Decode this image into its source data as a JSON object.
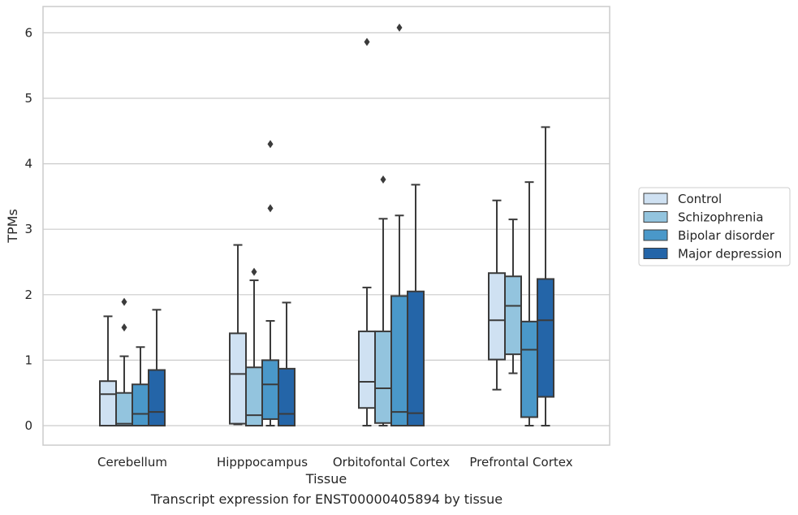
{
  "caption": "Transcript expression for ENST00000405894 by tissue",
  "chart_data": {
    "type": "box",
    "xlabel": "Tissue",
    "ylabel": "TPMs",
    "ylim": [
      -0.3,
      6.4
    ],
    "yticks": [
      0,
      1,
      2,
      3,
      4,
      5,
      6
    ],
    "grid": "horizontal",
    "legend_position": "right",
    "categories": [
      "Cerebellum",
      "Hipppocampus",
      "Orbitofontal Cortex",
      "Prefrontal Cortex"
    ],
    "series": [
      {
        "name": "Control",
        "color": "#cfe1f2",
        "boxes": [
          {
            "whislo": 0.0,
            "q1": 0.0,
            "med": 0.48,
            "q3": 0.68,
            "whishi": 1.67,
            "fliers": []
          },
          {
            "whislo": 0.02,
            "q1": 0.03,
            "med": 0.79,
            "q3": 1.41,
            "whishi": 2.76,
            "fliers": []
          },
          {
            "whislo": 0.0,
            "q1": 0.27,
            "med": 0.67,
            "q3": 1.44,
            "whishi": 2.11,
            "fliers": [
              5.86
            ]
          },
          {
            "whislo": 0.55,
            "q1": 1.01,
            "med": 1.61,
            "q3": 2.33,
            "whishi": 3.44,
            "fliers": []
          }
        ]
      },
      {
        "name": "Schizophrenia",
        "color": "#93c4de",
        "boxes": [
          {
            "whislo": 0.0,
            "q1": 0.0,
            "med": 0.03,
            "q3": 0.5,
            "whishi": 1.06,
            "fliers": [
              1.5,
              1.89
            ]
          },
          {
            "whislo": 0.0,
            "q1": 0.0,
            "med": 0.16,
            "q3": 0.89,
            "whishi": 2.22,
            "fliers": [
              2.35
            ]
          },
          {
            "whislo": 0.0,
            "q1": 0.04,
            "med": 0.57,
            "q3": 1.44,
            "whishi": 3.16,
            "fliers": [
              3.76
            ]
          },
          {
            "whislo": 0.8,
            "q1": 1.09,
            "med": 1.83,
            "q3": 2.28,
            "whishi": 3.15,
            "fliers": []
          }
        ]
      },
      {
        "name": "Bipolar disorder",
        "color": "#4a98c9",
        "boxes": [
          {
            "whislo": 0.0,
            "q1": 0.0,
            "med": 0.18,
            "q3": 0.63,
            "whishi": 1.2,
            "fliers": []
          },
          {
            "whislo": 0.0,
            "q1": 0.1,
            "med": 0.63,
            "q3": 1.0,
            "whishi": 1.6,
            "fliers": [
              3.32,
              4.3
            ]
          },
          {
            "whislo": 0.0,
            "q1": 0.0,
            "med": 0.21,
            "q3": 1.98,
            "whishi": 3.21,
            "fliers": [
              6.08
            ]
          },
          {
            "whislo": 0.0,
            "q1": 0.13,
            "med": 1.16,
            "q3": 1.59,
            "whishi": 3.72,
            "fliers": []
          }
        ]
      },
      {
        "name": "Major depression",
        "color": "#2465a8",
        "boxes": [
          {
            "whislo": 0.0,
            "q1": 0.0,
            "med": 0.21,
            "q3": 0.85,
            "whishi": 1.77,
            "fliers": []
          },
          {
            "whislo": 0.0,
            "q1": 0.0,
            "med": 0.18,
            "q3": 0.87,
            "whishi": 1.88,
            "fliers": []
          },
          {
            "whislo": 0.0,
            "q1": 0.0,
            "med": 0.19,
            "q3": 2.05,
            "whishi": 3.68,
            "fliers": []
          },
          {
            "whislo": 0.0,
            "q1": 0.44,
            "med": 1.61,
            "q3": 2.24,
            "whishi": 4.56,
            "fliers": []
          }
        ]
      }
    ]
  }
}
